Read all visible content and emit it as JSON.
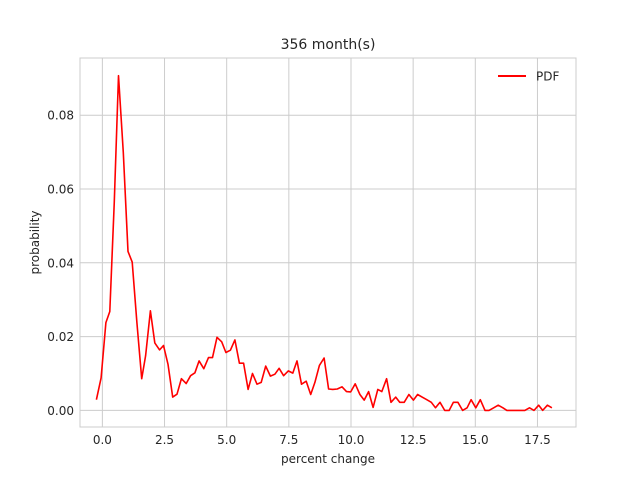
{
  "chart_data": {
    "type": "line",
    "title": "356 month(s)",
    "xlabel": "percent change",
    "ylabel": "probability",
    "xlim": [
      -0.9,
      19.05
    ],
    "ylim": [
      -0.0045,
      0.0955
    ],
    "xticks": [
      0.0,
      2.5,
      5.0,
      7.5,
      10.0,
      12.5,
      15.0,
      17.5
    ],
    "xtick_labels": [
      "0.0",
      "2.5",
      "5.0",
      "7.5",
      "10.0",
      "12.5",
      "15.0",
      "17.5"
    ],
    "yticks": [
      0.0,
      0.02,
      0.04,
      0.06,
      0.08
    ],
    "ytick_labels": [
      "0.00",
      "0.02",
      "0.04",
      "0.06",
      "0.08"
    ],
    "grid": true,
    "legend": {
      "location": "upper right",
      "entries": [
        {
          "label": "PDF",
          "color": "#ff0000"
        }
      ]
    },
    "series": [
      {
        "name": "PDF",
        "color": "#ff0000",
        "x": [
          -0.24,
          -0.05,
          0.14,
          0.3,
          0.48,
          0.65,
          0.84,
          1.03,
          1.2,
          1.39,
          1.58,
          1.74,
          1.93,
          2.11,
          2.3,
          2.46,
          2.64,
          2.83,
          3.0,
          3.18,
          3.37,
          3.55,
          3.72,
          3.89,
          4.08,
          4.27,
          4.43,
          4.61,
          4.8,
          4.97,
          5.15,
          5.33,
          5.51,
          5.68,
          5.86,
          6.04,
          6.22,
          6.39,
          6.57,
          6.76,
          6.94,
          7.11,
          7.29,
          7.48,
          7.66,
          7.83,
          8.01,
          8.2,
          8.38,
          8.55,
          8.73,
          8.92,
          9.1,
          9.27,
          9.45,
          9.64,
          9.82,
          9.99,
          10.17,
          10.36,
          10.53,
          10.71,
          10.89,
          11.08,
          11.24,
          11.43,
          11.61,
          11.8,
          11.96,
          12.14,
          12.33,
          12.51,
          12.68,
          12.86,
          13.05,
          13.23,
          13.4,
          13.58,
          13.77,
          13.95,
          14.12,
          14.3,
          14.49,
          14.67,
          14.83,
          15.02,
          15.2,
          15.39,
          15.55,
          15.74,
          15.92,
          16.11,
          16.27,
          16.46,
          16.64,
          16.83,
          16.99,
          17.18,
          17.36,
          17.55,
          17.71,
          17.9,
          18.08
        ],
        "y": [
          0.0029,
          0.0088,
          0.0238,
          0.0268,
          0.0566,
          0.0907,
          0.0699,
          0.0431,
          0.0402,
          0.0238,
          0.0086,
          0.0148,
          0.027,
          0.0183,
          0.0164,
          0.0176,
          0.0125,
          0.0036,
          0.0044,
          0.0086,
          0.0073,
          0.0094,
          0.0102,
          0.0134,
          0.0113,
          0.0143,
          0.0143,
          0.0198,
          0.0186,
          0.0157,
          0.0163,
          0.0191,
          0.0128,
          0.0128,
          0.0057,
          0.01,
          0.0071,
          0.0076,
          0.012,
          0.0093,
          0.0098,
          0.0114,
          0.0094,
          0.0107,
          0.0101,
          0.0134,
          0.0071,
          0.0079,
          0.0043,
          0.0076,
          0.0122,
          0.0142,
          0.0058,
          0.0057,
          0.0058,
          0.0064,
          0.0051,
          0.005,
          0.0072,
          0.0043,
          0.0028,
          0.0051,
          0.0008,
          0.0057,
          0.0051,
          0.0086,
          0.0022,
          0.0036,
          0.0022,
          0.0022,
          0.0043,
          0.0028,
          0.0043,
          0.0036,
          0.0029,
          0.0022,
          0.0007,
          0.0022,
          0.0,
          0.0,
          0.0022,
          0.0022,
          0.0,
          0.0007,
          0.0029,
          0.0007,
          0.0029,
          0.0,
          0.0,
          0.0007,
          0.0014,
          0.0007,
          0.0,
          0.0,
          0.0,
          0.0,
          0.0,
          0.0007,
          0.0,
          0.0014,
          0.0,
          0.0014,
          0.0007
        ]
      }
    ]
  }
}
